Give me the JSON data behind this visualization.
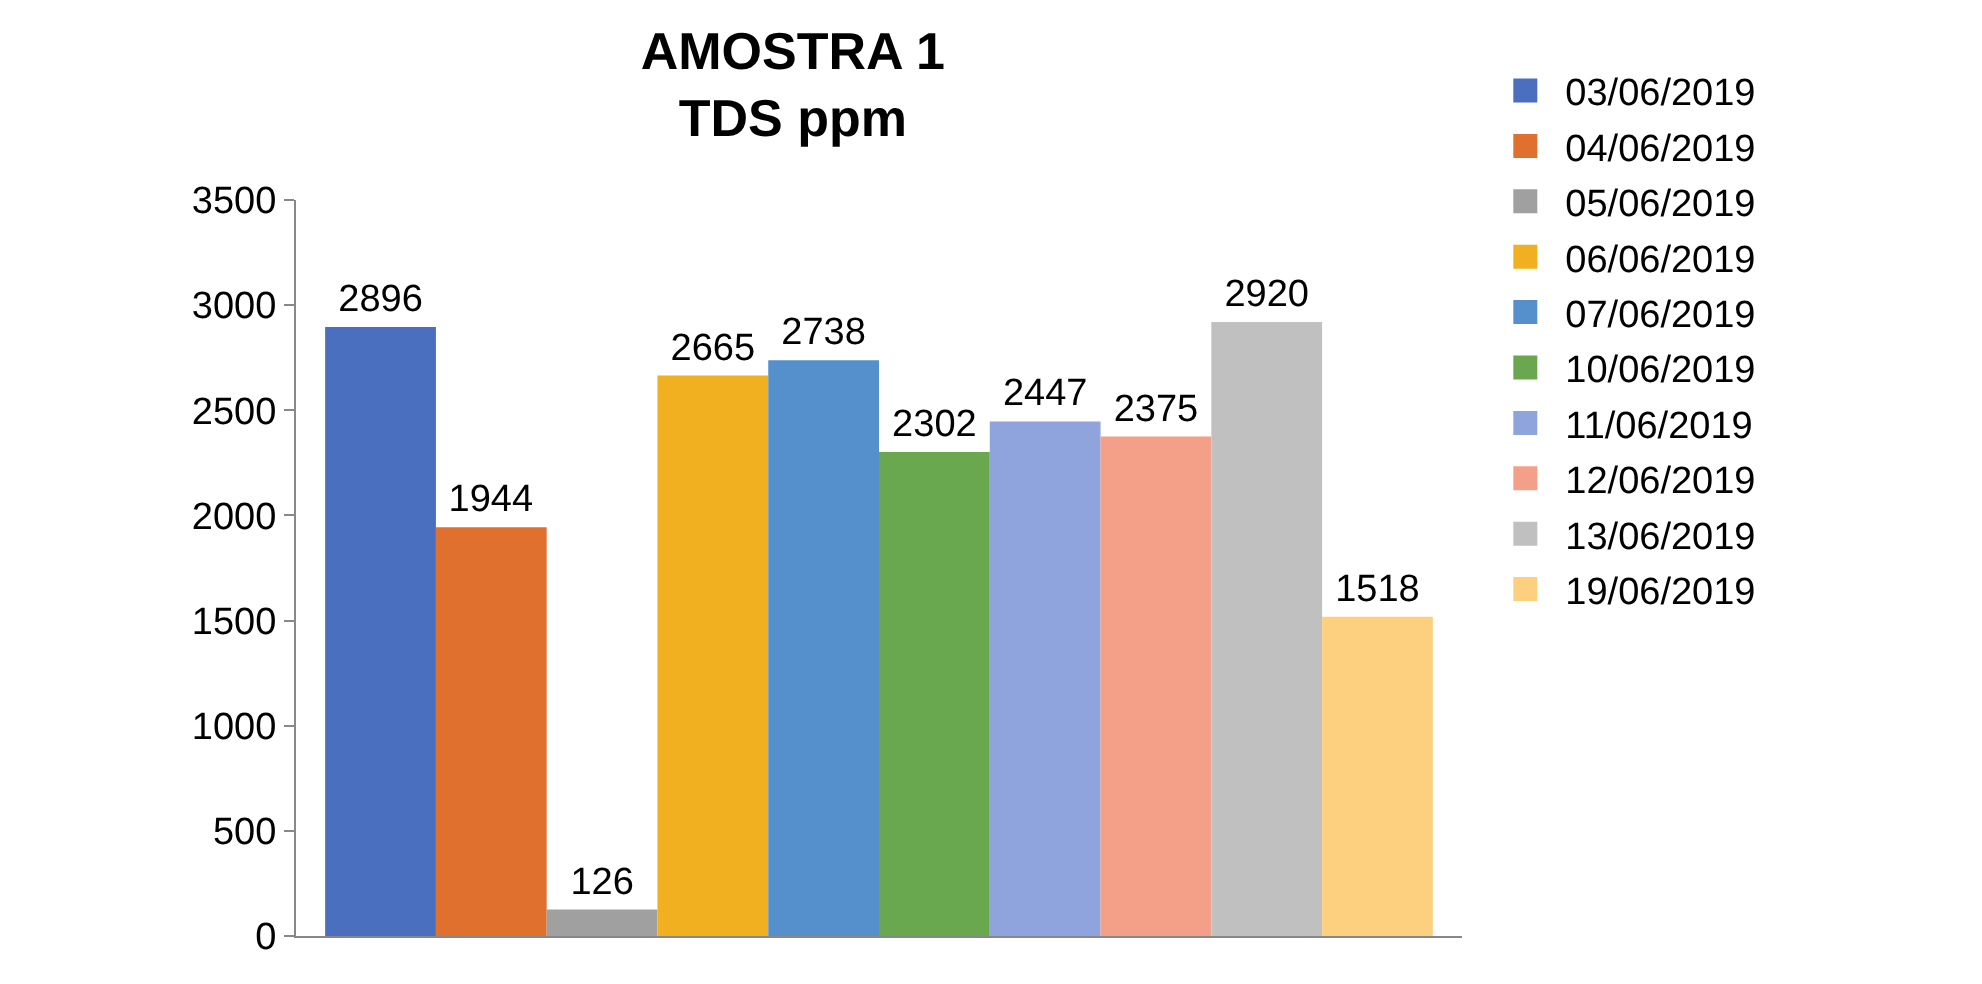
{
  "chart_data": {
    "type": "bar",
    "title": "AMOSTRA 1\nTDS ppm",
    "categories": [
      null
    ],
    "series": [
      {
        "name": "03/06/2019",
        "color": "#4a6fbf",
        "values": [
          2896
        ]
      },
      {
        "name": "04/06/2019",
        "color": "#e0702e",
        "values": [
          1944
        ]
      },
      {
        "name": "05/06/2019",
        "color": "#a0a0a0",
        "values": [
          126
        ]
      },
      {
        "name": "06/06/2019",
        "color": "#f0b020",
        "values": [
          2665
        ]
      },
      {
        "name": "07/06/2019",
        "color": "#5590cc",
        "values": [
          2738
        ]
      },
      {
        "name": "10/06/2019",
        "color": "#6aa84f",
        "values": [
          2302
        ]
      },
      {
        "name": "11/06/2019",
        "color": "#8fa3dc",
        "values": [
          2447
        ]
      },
      {
        "name": "12/06/2019",
        "color": "#f4a088",
        "values": [
          2375
        ]
      },
      {
        "name": "13/06/2019",
        "color": "#c0c0c0",
        "values": [
          2920
        ]
      },
      {
        "name": "19/06/2019",
        "color": "#fdd080",
        "values": [
          1518
        ]
      }
    ],
    "ylim": [
      0,
      3500
    ],
    "yticks": [
      0,
      500,
      1000,
      1500,
      2000,
      2500,
      3000,
      3500
    ],
    "grid": false,
    "legend": "right",
    "data_labels": true
  }
}
